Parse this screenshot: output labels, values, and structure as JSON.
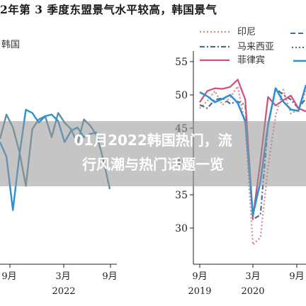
{
  "header": {
    "title": "2年第 3 季度东盟景气水平较高，韩国景气"
  },
  "overlay": {
    "headline_line1": "01月2022韩国热门，流",
    "headline_line2": "行风潮与热门话题一览"
  },
  "colors": {
    "korea": "#5b8fa6",
    "indonesia": "#d9868a",
    "malaysia": "#4a6f8c",
    "philippines": "#cf4f78",
    "blue": "#2f8fd1",
    "axis": "#222222",
    "overlay": "#969696"
  },
  "chart_data": [
    {
      "type": "line",
      "title": "",
      "legend": [
        "韩国"
      ],
      "x_ticks": [
        {
          "label": "9",
          "sub": "月"
        },
        {
          "label": "3",
          "sub": "月",
          "year": "2022"
        },
        {
          "label": "9",
          "sub": "月"
        }
      ],
      "series": [
        {
          "name": "韩国",
          "color": "#5b8fa6",
          "values": [
            51.7,
            53.2,
            52.4,
            50.9,
            48.8,
            52.3,
            52.9,
            53.1,
            51.8,
            53.3,
            52.7,
            52.3,
            51.4,
            52.9,
            52.5,
            51.9,
            50.4,
            48.6
          ]
        },
        {
          "name": "",
          "color": "#2f8fd1",
          "values": [
            51.5,
            50.6,
            47.3,
            50.7,
            53.5,
            53.3,
            52.7,
            53.1,
            53.2,
            52.8,
            51.5,
            52.2,
            52.4,
            51.8,
            52.0,
            52.1,
            null,
            null
          ]
        }
      ]
    },
    {
      "type": "line",
      "title": "",
      "y_ticks": [
        "55",
        "50",
        "45",
        "40",
        "35",
        "30"
      ],
      "ylim": [
        26,
        58
      ],
      "legend_placement": "top",
      "x_ticks": [
        {
          "label": "9",
          "sub": "月",
          "year": "2019"
        },
        {
          "label": "3",
          "sub": "月",
          "year": "2020"
        },
        {
          "label": "9",
          "sub": "月"
        }
      ],
      "series": [
        {
          "name": "印尼",
          "color": "#d9868a",
          "style": "dotted",
          "values": [
            48.0,
            49.1,
            50.6,
            48.5,
            49.6,
            51.3,
            45.4,
            27.5,
            28.6,
            39.1,
            46.9,
            50.8,
            47.2,
            47.8,
            50.6
          ]
        },
        {
          "name": "马来西亚",
          "color": "#4a6f8c",
          "style": "dashdot",
          "values": [
            48.5,
            48.0,
            49.3,
            49.5,
            48.7,
            49.0,
            48.5,
            31.3,
            32.0,
            45.6,
            51.0,
            50.0,
            49.3,
            48.0,
            49.5
          ]
        },
        {
          "name": "菲律宾",
          "color": "#cf4f78",
          "style": "solid",
          "values": [
            48.9,
            50.6,
            51.0,
            50.9,
            51.2,
            52.3,
            49.3,
            31.6,
            40.1,
            49.7,
            48.4,
            49.2,
            49.9,
            48.0,
            47.5
          ]
        },
        {
          "name": "",
          "color": "#2f8fd1",
          "style": "solid",
          "values": [
            50.4,
            49.8,
            48.9,
            49.4,
            50.0,
            48.8,
            46.0,
            32.0,
            37.0,
            45.5,
            51.0,
            49.0,
            47.8,
            47.6,
            51.5
          ]
        }
      ]
    }
  ]
}
